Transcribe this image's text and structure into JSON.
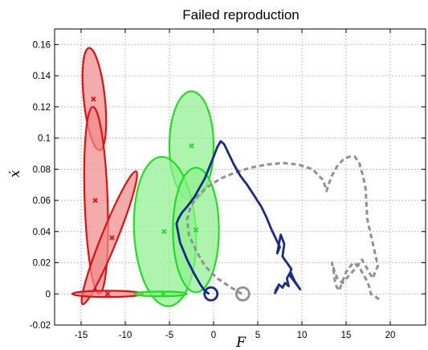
{
  "chart_data": {
    "type": "scatter",
    "title": "Failed reproduction",
    "xlabel": "F",
    "ylabel": "ẋ",
    "xlim": [
      -18,
      24
    ],
    "ylim": [
      -0.02,
      0.17
    ],
    "grid": true,
    "xticks": [
      -15,
      -10,
      -5,
      0,
      5,
      10,
      15,
      20
    ],
    "yticks": [
      -0.02,
      0,
      0.02,
      0.04,
      0.06,
      0.08,
      0.1,
      0.12,
      0.14,
      0.16
    ],
    "ytick_labels": [
      "-0.02",
      "0",
      "0.02",
      "0.04",
      "0.06",
      "0.08",
      "0.1",
      "0.12",
      "0.14",
      "0.16"
    ],
    "colors": {
      "red_fill": "#f08a8a",
      "red_edge": "#e01010",
      "green_fill": "#8ff08f",
      "green_edge": "#22dd22",
      "blue": "#1a2a8c",
      "gray": "#909090"
    },
    "ellipses": [
      {
        "group": "red",
        "cx": -13.5,
        "cy": 0.125,
        "rx": 1.2,
        "ry": 0.033,
        "angle": -6
      },
      {
        "group": "red",
        "cx": -13.3,
        "cy": 0.06,
        "rx": 1.3,
        "ry": 0.06,
        "angle": -2
      },
      {
        "group": "red",
        "cx": -11.8,
        "cy": 0.036,
        "rx": 0.9,
        "ry": 0.046,
        "angle": 22
      },
      {
        "group": "red",
        "cx": -12.0,
        "cy": 0.0,
        "rx": 4.0,
        "ry": 0.002,
        "angle": 0
      },
      {
        "group": "green",
        "cx": -2.5,
        "cy": 0.095,
        "rx": 2.5,
        "ry": 0.035,
        "angle": 0
      },
      {
        "group": "green",
        "cx": -5.5,
        "cy": 0.04,
        "rx": 3.5,
        "ry": 0.048,
        "angle": -3
      },
      {
        "group": "green",
        "cx": -2.0,
        "cy": 0.041,
        "rx": 2.6,
        "ry": 0.04,
        "angle": 0
      },
      {
        "group": "green",
        "cx": -6.0,
        "cy": 0.0,
        "rx": 3.0,
        "ry": 0.0015,
        "angle": 0
      }
    ],
    "centers": [
      {
        "group": "red",
        "x": -13.6,
        "y": 0.125
      },
      {
        "group": "red",
        "x": -13.4,
        "y": 0.06
      },
      {
        "group": "red",
        "x": -11.5,
        "y": 0.036
      },
      {
        "group": "red",
        "x": -12.0,
        "y": 0.0
      },
      {
        "group": "green",
        "x": -2.5,
        "y": 0.095
      },
      {
        "group": "green",
        "x": -5.6,
        "y": 0.04
      },
      {
        "group": "green",
        "x": -2.0,
        "y": 0.041
      },
      {
        "group": "green",
        "x": -5.7,
        "y": 0.0
      }
    ],
    "reproduction": {
      "x": [
        -0.5,
        -1.0,
        -1.5,
        -2.2,
        -3.0,
        -3.8,
        -4.2,
        -4.0,
        -3.6,
        -3.0,
        -2.2,
        -1.6,
        -1.0,
        -0.5,
        0,
        0.4,
        0.8,
        1.2,
        1.7,
        2.3,
        3.0,
        3.8,
        4.6,
        5.4,
        6.0,
        6.5,
        7.0,
        7.5,
        7.2,
        7.6,
        8.0,
        7.8,
        8.3,
        8.8,
        8.6,
        9.0,
        9.4,
        9.8,
        9.2,
        8.7,
        8.3,
        8.5,
        8.1,
        7.8,
        7.4,
        7.0,
        7.3,
        6.9
      ],
      "y": [
        0.0,
        0.002,
        0.006,
        0.013,
        0.022,
        0.033,
        0.045,
        0.048,
        0.052,
        0.056,
        0.062,
        0.068,
        0.074,
        0.081,
        0.088,
        0.094,
        0.098,
        0.096,
        0.09,
        0.083,
        0.076,
        0.07,
        0.063,
        0.056,
        0.049,
        0.042,
        0.036,
        0.03,
        0.026,
        0.038,
        0.032,
        0.024,
        0.02,
        0.016,
        0.012,
        0.009,
        0.006,
        0.003,
        0.008,
        0.014,
        0.01,
        0.005,
        0.007,
        0.004,
        0.006,
        0.002,
        0.004,
        0.0
      ]
    },
    "reference": {
      "x": [
        3.2,
        2.0,
        0.4,
        -1.0,
        -2.0,
        -2.8,
        -3.0,
        -2.6,
        -1.8,
        -0.6,
        0.8,
        2.5,
        4.2,
        6.0,
        7.8,
        9.6,
        11.2,
        12.4,
        12.8,
        13.0,
        13.4,
        14.0,
        14.8,
        15.4,
        16.0,
        16.5,
        16.9,
        17.2,
        17.3,
        17.4,
        17.8,
        18.2,
        18.6,
        18.0,
        17.4,
        16.8,
        16.0,
        15.2,
        14.6,
        14.0,
        13.6,
        13.4,
        13.6,
        13.8,
        14.2,
        15.0,
        15.8,
        16.4,
        17.0,
        17.4,
        17.6,
        17.8,
        18.4,
        19.0
      ],
      "y": [
        0.0,
        0.004,
        0.01,
        0.018,
        0.028,
        0.038,
        0.048,
        0.056,
        0.063,
        0.069,
        0.074,
        0.078,
        0.081,
        0.083,
        0.084,
        0.083,
        0.08,
        0.073,
        0.066,
        0.07,
        0.076,
        0.082,
        0.087,
        0.088,
        0.088,
        0.084,
        0.076,
        0.068,
        0.058,
        0.048,
        0.038,
        0.028,
        0.018,
        0.01,
        0.016,
        0.022,
        0.016,
        0.011,
        0.007,
        0.01,
        0.016,
        0.02,
        0.014,
        0.006,
        0.002,
        0.014,
        0.02,
        0.018,
        0.012,
        0.008,
        0.005,
        0.0,
        -0.002,
        -0.005
      ]
    },
    "markers": [
      {
        "group": "blue",
        "x": -0.3,
        "y": 0.0
      },
      {
        "group": "gray",
        "x": 3.3,
        "y": 0.0
      }
    ]
  }
}
